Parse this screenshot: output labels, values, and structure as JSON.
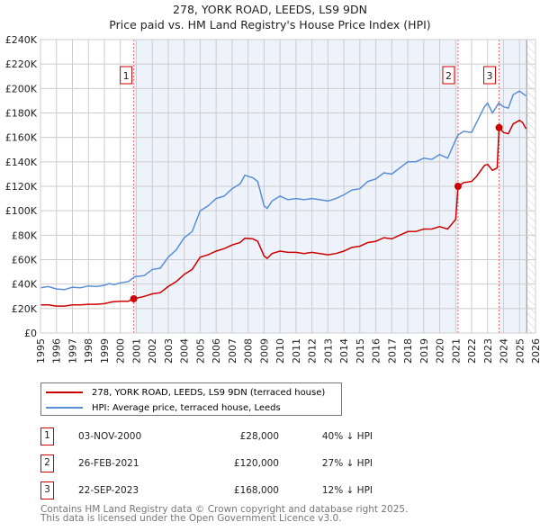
{
  "title_line1": "278, YORK ROAD, LEEDS, LS9 9DN",
  "title_line2": "Price paid vs. HM Land Registry's House Price Index (HPI)",
  "colors": {
    "property": "#cc0000",
    "hpi": "#5b8fd4",
    "shade": "#eef3fb"
  },
  "chart_data": {
    "type": "line",
    "xlim": [
      1995,
      2026
    ],
    "ylim": [
      0,
      240000
    ],
    "yticks": [
      0,
      20000,
      40000,
      60000,
      80000,
      100000,
      120000,
      140000,
      160000,
      180000,
      200000,
      220000,
      240000
    ],
    "ytick_labels": [
      "£0",
      "£20K",
      "£40K",
      "£60K",
      "£80K",
      "£100K",
      "£120K",
      "£140K",
      "£160K",
      "£180K",
      "£200K",
      "£220K",
      "£240K"
    ],
    "xticks": [
      "1995",
      "1996",
      "1997",
      "1998",
      "1999",
      "2000",
      "2001",
      "2002",
      "2003",
      "2004",
      "2005",
      "2006",
      "2007",
      "2008",
      "2009",
      "2010",
      "2011",
      "2012",
      "2013",
      "2014",
      "2015",
      "2016",
      "2017",
      "2018",
      "2019",
      "2020",
      "2021",
      "2022",
      "2023",
      "2024",
      "2025",
      "2026"
    ],
    "grid": true,
    "forecast_start": 2025.45,
    "series": [
      {
        "name": "278, YORK ROAD, LEEDS, LS9 9DN (terraced house)",
        "key": "property",
        "points": [
          [
            1995,
            23000
          ],
          [
            1995.5,
            23000
          ],
          [
            1996,
            22000
          ],
          [
            1996.5,
            22000
          ],
          [
            1997,
            23000
          ],
          [
            1997.5,
            23000
          ],
          [
            1998,
            23500
          ],
          [
            1998.5,
            23500
          ],
          [
            1999,
            24000
          ],
          [
            1999.5,
            25500
          ],
          [
            2000,
            26000
          ],
          [
            2000.5,
            26000
          ],
          [
            2000.84,
            28000
          ],
          [
            2001.5,
            30000
          ],
          [
            2002,
            32000
          ],
          [
            2002.5,
            33000
          ],
          [
            2003,
            38000
          ],
          [
            2003.5,
            42000
          ],
          [
            2004,
            48000
          ],
          [
            2004.5,
            52000
          ],
          [
            2005,
            62000
          ],
          [
            2005.5,
            64000
          ],
          [
            2006,
            67000
          ],
          [
            2006.5,
            69000
          ],
          [
            2007,
            72000
          ],
          [
            2007.5,
            74000
          ],
          [
            2007.8,
            77500
          ],
          [
            2008.3,
            77000
          ],
          [
            2008.6,
            75000
          ],
          [
            2009,
            63000
          ],
          [
            2009.2,
            61000
          ],
          [
            2009.5,
            65000
          ],
          [
            2010,
            67000
          ],
          [
            2010.5,
            66000
          ],
          [
            2011,
            66000
          ],
          [
            2011.5,
            65000
          ],
          [
            2012,
            66000
          ],
          [
            2012.5,
            65000
          ],
          [
            2013,
            64000
          ],
          [
            2013.5,
            65000
          ],
          [
            2014,
            67000
          ],
          [
            2014.5,
            70000
          ],
          [
            2015,
            71000
          ],
          [
            2015.5,
            74000
          ],
          [
            2016,
            75000
          ],
          [
            2016.5,
            78000
          ],
          [
            2017,
            77000
          ],
          [
            2017.5,
            80000
          ],
          [
            2018,
            83000
          ],
          [
            2018.5,
            83000
          ],
          [
            2019,
            85000
          ],
          [
            2019.5,
            85000
          ],
          [
            2020,
            87000
          ],
          [
            2020.5,
            85000
          ],
          [
            2021,
            93000
          ],
          [
            2021.15,
            120000
          ],
          [
            2021.5,
            123000
          ],
          [
            2022,
            124000
          ],
          [
            2022.3,
            128000
          ],
          [
            2022.8,
            137000
          ],
          [
            2023,
            138000
          ],
          [
            2023.3,
            133000
          ],
          [
            2023.6,
            135000
          ],
          [
            2023.72,
            168000
          ],
          [
            2024,
            164000
          ],
          [
            2024.3,
            163000
          ],
          [
            2024.6,
            171000
          ],
          [
            2025,
            174000
          ],
          [
            2025.2,
            172000
          ],
          [
            2025.4,
            167000
          ]
        ]
      },
      {
        "name": "HPI: Average price, terraced house, Leeds",
        "key": "hpi",
        "points": [
          [
            1995,
            37000
          ],
          [
            1995.5,
            38000
          ],
          [
            1996,
            36000
          ],
          [
            1996.5,
            35500
          ],
          [
            1997,
            37500
          ],
          [
            1997.5,
            37000
          ],
          [
            1998,
            38500
          ],
          [
            1998.5,
            38000
          ],
          [
            1999,
            39000
          ],
          [
            1999.3,
            40500
          ],
          [
            1999.6,
            39500
          ],
          [
            2000,
            41000
          ],
          [
            2000.5,
            42000
          ],
          [
            2000.9,
            46000
          ],
          [
            2001.5,
            47000
          ],
          [
            2002,
            52000
          ],
          [
            2002.5,
            53000
          ],
          [
            2003,
            62000
          ],
          [
            2003.5,
            68000
          ],
          [
            2004,
            78000
          ],
          [
            2004.5,
            83000
          ],
          [
            2005,
            100000
          ],
          [
            2005.5,
            104000
          ],
          [
            2006,
            110000
          ],
          [
            2006.5,
            112000
          ],
          [
            2007,
            118000
          ],
          [
            2007.5,
            122000
          ],
          [
            2007.8,
            129000
          ],
          [
            2008.3,
            127000
          ],
          [
            2008.6,
            124000
          ],
          [
            2009,
            104000
          ],
          [
            2009.2,
            102000
          ],
          [
            2009.5,
            108000
          ],
          [
            2010,
            112000
          ],
          [
            2010.5,
            109000
          ],
          [
            2011,
            110000
          ],
          [
            2011.5,
            109000
          ],
          [
            2012,
            110000
          ],
          [
            2012.5,
            109000
          ],
          [
            2013,
            108000
          ],
          [
            2013.5,
            110000
          ],
          [
            2014,
            113000
          ],
          [
            2014.5,
            117000
          ],
          [
            2015,
            118000
          ],
          [
            2015.5,
            124000
          ],
          [
            2016,
            126000
          ],
          [
            2016.5,
            131000
          ],
          [
            2017,
            130000
          ],
          [
            2017.5,
            135000
          ],
          [
            2018,
            140000
          ],
          [
            2018.5,
            140000
          ],
          [
            2019,
            143000
          ],
          [
            2019.5,
            142000
          ],
          [
            2020,
            146000
          ],
          [
            2020.5,
            143000
          ],
          [
            2021,
            158000
          ],
          [
            2021.15,
            162000
          ],
          [
            2021.5,
            165000
          ],
          [
            2022,
            164000
          ],
          [
            2022.3,
            172000
          ],
          [
            2022.8,
            185000
          ],
          [
            2023,
            188000
          ],
          [
            2023.3,
            180000
          ],
          [
            2023.7,
            188000
          ],
          [
            2024,
            185000
          ],
          [
            2024.3,
            184000
          ],
          [
            2024.6,
            195000
          ],
          [
            2025,
            198000
          ],
          [
            2025.2,
            196000
          ],
          [
            2025.4,
            194000
          ]
        ]
      }
    ],
    "sales": [
      {
        "id": "1",
        "x": 2000.84,
        "value": 28000,
        "date": "03-NOV-2000",
        "price": "£28,000",
        "hpi": "40% ↓ HPI"
      },
      {
        "id": "2",
        "x": 2021.15,
        "value": 120000,
        "date": "26-FEB-2021",
        "price": "£120,000",
        "hpi": "27% ↓ HPI"
      },
      {
        "id": "3",
        "x": 2023.72,
        "value": 168000,
        "date": "22-SEP-2023",
        "price": "£168,000",
        "hpi": "12% ↓ HPI"
      }
    ]
  },
  "footer_line1": "Contains HM Land Registry data © Crown copyright and database right 2025.",
  "footer_line2": "This data is licensed under the Open Government Licence v3.0."
}
